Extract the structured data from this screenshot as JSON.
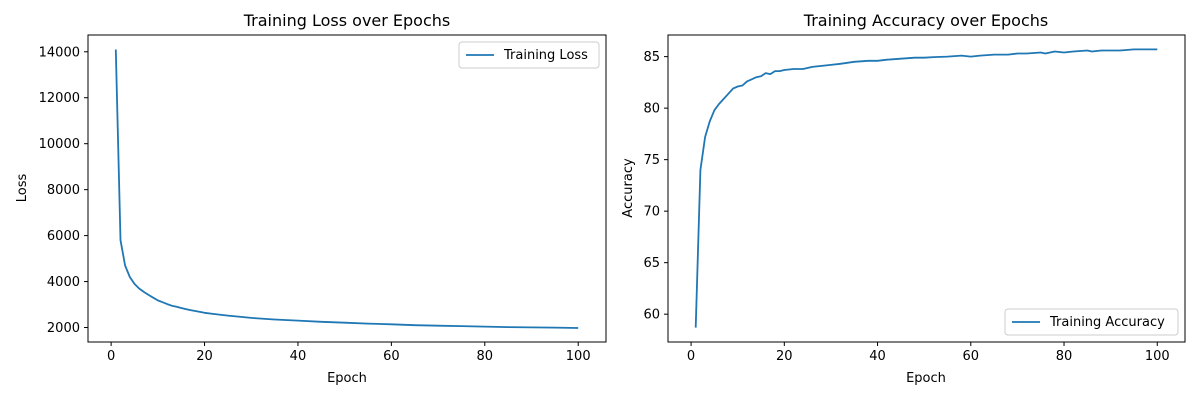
{
  "figure": {
    "line_color": "#1f77b4"
  },
  "chart_data": [
    {
      "type": "line",
      "title": "Training Loss over Epochs",
      "xlabel": "Epoch",
      "ylabel": "Loss",
      "xlim": [
        -4.95,
        105.95
      ],
      "ylim": [
        1370,
        14730
      ],
      "xticks": [
        0,
        20,
        40,
        60,
        80,
        100
      ],
      "yticks": [
        2000,
        4000,
        6000,
        8000,
        10000,
        12000,
        14000
      ],
      "grid": false,
      "legend_position": "upper right",
      "series": [
        {
          "name": "Training Loss",
          "color": "#1f77b4",
          "x": [
            1,
            2,
            3,
            4,
            5,
            6,
            7,
            8,
            9,
            10,
            11,
            12,
            13,
            14,
            15,
            16,
            17,
            18,
            19,
            20,
            22,
            25,
            27,
            30,
            35,
            40,
            45,
            50,
            55,
            60,
            65,
            70,
            75,
            80,
            85,
            90,
            95,
            100
          ],
          "y": [
            14100,
            5800,
            4700,
            4200,
            3900,
            3700,
            3550,
            3420,
            3300,
            3180,
            3100,
            3020,
            2950,
            2900,
            2850,
            2800,
            2760,
            2720,
            2680,
            2640,
            2590,
            2520,
            2480,
            2420,
            2350,
            2300,
            2250,
            2210,
            2170,
            2140,
            2100,
            2080,
            2060,
            2040,
            2020,
            2005,
            1995,
            1980
          ]
        }
      ]
    },
    {
      "type": "line",
      "title": "Training Accuracy over Epochs",
      "xlabel": "Epoch",
      "ylabel": "Accuracy",
      "xlim": [
        -4.95,
        105.95
      ],
      "ylim": [
        57.3,
        87.1
      ],
      "xticks": [
        0,
        20,
        40,
        60,
        80,
        100
      ],
      "yticks": [
        60,
        65,
        70,
        75,
        80,
        85
      ],
      "grid": false,
      "legend_position": "lower right",
      "series": [
        {
          "name": "Training Accuracy",
          "color": "#1f77b4",
          "x": [
            1,
            2,
            3,
            4,
            5,
            6,
            7,
            8,
            9,
            10,
            11,
            12,
            13,
            14,
            15,
            16,
            17,
            18,
            19,
            20,
            22,
            24,
            26,
            28,
            30,
            32,
            35,
            38,
            40,
            42,
            45,
            48,
            50,
            52,
            55,
            58,
            60,
            62,
            65,
            68,
            70,
            72,
            75,
            76,
            78,
            80,
            82,
            85,
            86,
            88,
            90,
            92,
            95,
            98,
            100
          ],
          "y": [
            58.7,
            74.0,
            77.2,
            78.7,
            79.8,
            80.4,
            80.9,
            81.4,
            81.9,
            82.1,
            82.2,
            82.6,
            82.8,
            83.0,
            83.1,
            83.4,
            83.3,
            83.6,
            83.6,
            83.7,
            83.8,
            83.8,
            84.0,
            84.1,
            84.2,
            84.3,
            84.5,
            84.6,
            84.6,
            84.7,
            84.8,
            84.9,
            84.9,
            84.95,
            85.0,
            85.1,
            85.0,
            85.1,
            85.2,
            85.2,
            85.3,
            85.3,
            85.4,
            85.3,
            85.5,
            85.4,
            85.5,
            85.6,
            85.5,
            85.6,
            85.6,
            85.6,
            85.7,
            85.7,
            85.7
          ]
        }
      ]
    }
  ]
}
